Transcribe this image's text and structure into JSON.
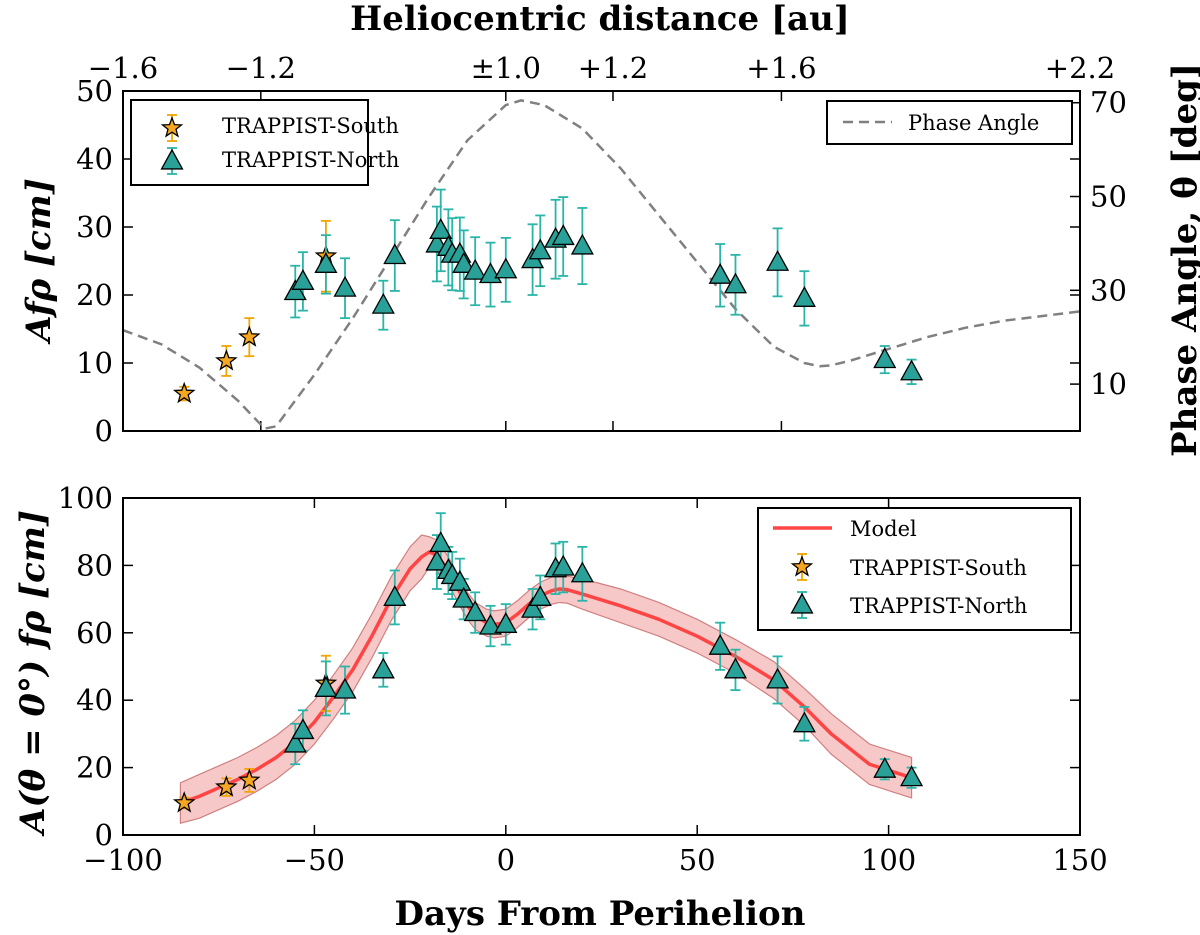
{
  "chart_data": [
    {
      "id": "top",
      "type": "scatter",
      "top_axis": {
        "label": "Heliocentric distance [au]",
        "tick_labels": [
          "−1.6",
          "−1.2",
          "±1.0",
          "+1.2",
          "+1.6",
          "+2.2"
        ],
        "tick_days": [
          -100,
          -64,
          0,
          28,
          72,
          150
        ]
      },
      "ylabel": "Afρ [cm]",
      "ylabel_right": "Phase Angle, θ [deg]",
      "xlim": [
        -100,
        150
      ],
      "ylim": [
        0,
        50
      ],
      "yticks": [
        0,
        10,
        20,
        30,
        40,
        50
      ],
      "ylim_right": [
        0,
        72.5
      ],
      "yticks_right": [
        10,
        30,
        50,
        70
      ],
      "series": [
        {
          "name": "TRAPPIST-South",
          "marker": "star",
          "color": "#f5a623",
          "err_color": "#f0a500",
          "points": [
            {
              "x": -84,
              "y": 5.5,
              "err": 1.0
            },
            {
              "x": -73,
              "y": 10.3,
              "err": 2.2
            },
            {
              "x": -67,
              "y": 13.8,
              "err": 2.8
            },
            {
              "x": -47,
              "y": 25.7,
              "err": 5.2
            }
          ]
        },
        {
          "name": "TRAPPIST-North",
          "marker": "triangle",
          "color": "#2aa198",
          "err_color": "#2ab5a8",
          "points": [
            {
              "x": -55,
              "y": 20.5,
              "err": 3.8
            },
            {
              "x": -53,
              "y": 22.0,
              "err": 4.3
            },
            {
              "x": -47,
              "y": 24.5,
              "err": 4.3
            },
            {
              "x": -42,
              "y": 21.0,
              "err": 4.4
            },
            {
              "x": -32,
              "y": 18.5,
              "err": 3.6
            },
            {
              "x": -29,
              "y": 25.8,
              "err": 5.2
            },
            {
              "x": -18,
              "y": 27.5,
              "err": 5.5
            },
            {
              "x": -17,
              "y": 29.5,
              "err": 6.0
            },
            {
              "x": -15,
              "y": 27.0,
              "err": 5.6
            },
            {
              "x": -14,
              "y": 26.0,
              "err": 5.3
            },
            {
              "x": -12,
              "y": 26.0,
              "err": 5.4
            },
            {
              "x": -11,
              "y": 24.5,
              "err": 5.0
            },
            {
              "x": -8,
              "y": 23.5,
              "err": 5.0
            },
            {
              "x": -4,
              "y": 23.0,
              "err": 4.7
            },
            {
              "x": 0,
              "y": 23.7,
              "err": 4.7
            },
            {
              "x": 7,
              "y": 25.2,
              "err": 5.2
            },
            {
              "x": 9,
              "y": 26.5,
              "err": 5.2
            },
            {
              "x": 13,
              "y": 28.2,
              "err": 5.8
            },
            {
              "x": 15,
              "y": 28.6,
              "err": 5.8
            },
            {
              "x": 20,
              "y": 27.2,
              "err": 5.6
            },
            {
              "x": 56,
              "y": 22.9,
              "err": 4.6
            },
            {
              "x": 60,
              "y": 21.5,
              "err": 4.4
            },
            {
              "x": 71,
              "y": 24.8,
              "err": 5.0
            },
            {
              "x": 78,
              "y": 19.5,
              "err": 4.0
            },
            {
              "x": 99,
              "y": 10.5,
              "err": 2.0
            },
            {
              "x": 106,
              "y": 8.7,
              "err": 1.8
            }
          ]
        },
        {
          "name": "Phase Angle",
          "type": "line",
          "dashed": true,
          "color": "#808080",
          "axis": "right",
          "x": [
            -100,
            -90,
            -80,
            -70,
            -63,
            -60,
            -55,
            -50,
            -45,
            -40,
            -30,
            -20,
            -10,
            0,
            4,
            10,
            20,
            30,
            40,
            50,
            60,
            70,
            78,
            82,
            85,
            90,
            100,
            110,
            120,
            130,
            140,
            150
          ],
          "y": [
            21.5,
            18.5,
            13.5,
            6.5,
            0.5,
            1.0,
            6.5,
            12.0,
            18.0,
            24.0,
            37.0,
            50.0,
            62.0,
            69.5,
            70.5,
            69.5,
            64.5,
            56.0,
            46.0,
            36.0,
            26.0,
            18.0,
            14.5,
            13.8,
            14.0,
            15.0,
            17.5,
            20.0,
            22.0,
            23.5,
            24.5,
            25.5
          ]
        }
      ],
      "legends": [
        {
          "position": "top-left",
          "entries": [
            "TRAPPIST-South",
            "TRAPPIST-North"
          ]
        },
        {
          "position": "top-right",
          "entries": [
            "Phase Angle"
          ]
        }
      ]
    },
    {
      "id": "bottom",
      "type": "scatter",
      "xlabel": "Days From Perihelion",
      "ylabel": "A(θ = 0°) fρ [cm]",
      "xlim": [
        -100,
        150
      ],
      "xticks": [
        -100,
        -50,
        0,
        50,
        100,
        150
      ],
      "xtick_labels": [
        "−100",
        "−50",
        "0",
        "50",
        "100",
        "150"
      ],
      "ylim": [
        0,
        100
      ],
      "yticks": [
        0,
        20,
        40,
        60,
        80,
        100
      ],
      "series": [
        {
          "name": "Model",
          "type": "line",
          "color": "#ff4444",
          "band_color": "#f4b6b6",
          "x": [
            -85,
            -80,
            -75,
            -70,
            -65,
            -60,
            -55,
            -50,
            -45,
            -40,
            -35,
            -30,
            -25,
            -22,
            -20,
            -18,
            -15,
            -12,
            -10,
            -8,
            -5,
            -3,
            0,
            3,
            6,
            9,
            12,
            14,
            16,
            20,
            30,
            40,
            50,
            60,
            70,
            78,
            85,
            95,
            106
          ],
          "y": [
            9.5,
            11.5,
            14.0,
            16.5,
            19.5,
            23.0,
            27.5,
            33.5,
            41.0,
            49.0,
            59.0,
            70.0,
            79.0,
            82.5,
            84.0,
            83.0,
            78.5,
            72.0,
            68.0,
            65.0,
            63.0,
            62.5,
            63.0,
            65.5,
            68.5,
            71.0,
            72.5,
            73.0,
            72.8,
            71.5,
            68.0,
            64.0,
            59.0,
            53.0,
            46.0,
            38.0,
            30.0,
            21.0,
            17.0
          ],
          "band": [
            6.0,
            6.5,
            6.5,
            6.5,
            6.5,
            6.5,
            6.5,
            6.5,
            6.5,
            6.5,
            6.5,
            6.5,
            6.5,
            6.5,
            4.5,
            4.5,
            4.0,
            4.0,
            4.0,
            4.0,
            4.0,
            4.0,
            4.0,
            4.0,
            4.0,
            4.0,
            4.0,
            4.0,
            4.0,
            4.5,
            5.0,
            5.0,
            5.0,
            5.0,
            5.5,
            5.5,
            6.0,
            6.0,
            6.0
          ]
        },
        {
          "name": "TRAPPIST-South",
          "marker": "star",
          "color": "#f5a623",
          "err_color": "#f0a500",
          "points": [
            {
              "x": -84,
              "y": 9.5,
              "err": 1.6
            },
            {
              "x": -73,
              "y": 14.2,
              "err": 2.6
            },
            {
              "x": -67,
              "y": 16.2,
              "err": 3.4
            },
            {
              "x": -47,
              "y": 45.0,
              "err": 8.2
            }
          ]
        },
        {
          "name": "TRAPPIST-North",
          "marker": "triangle",
          "color": "#2aa198",
          "err_color": "#2ab5a8",
          "points": [
            {
              "x": -55,
              "y": 27.0,
              "err": 6.0
            },
            {
              "x": -53,
              "y": 31.0,
              "err": 6.0
            },
            {
              "x": -47,
              "y": 43.5,
              "err": 8.0
            },
            {
              "x": -42,
              "y": 43.0,
              "err": 7.0
            },
            {
              "x": -32,
              "y": 49.0,
              "err": 5.0
            },
            {
              "x": -29,
              "y": 70.5,
              "err": 8.0
            },
            {
              "x": -18,
              "y": 81.0,
              "err": 8.0
            },
            {
              "x": -17,
              "y": 86.5,
              "err": 9.0
            },
            {
              "x": -15,
              "y": 78.5,
              "err": 7.0
            },
            {
              "x": -14,
              "y": 77.0,
              "err": 7.0
            },
            {
              "x": -12,
              "y": 75.0,
              "err": 7.0
            },
            {
              "x": -11,
              "y": 70.0,
              "err": 6.0
            },
            {
              "x": -8,
              "y": 66.0,
              "err": 6.0
            },
            {
              "x": -4,
              "y": 62.0,
              "err": 6.0
            },
            {
              "x": 0,
              "y": 62.5,
              "err": 6.0
            },
            {
              "x": 7,
              "y": 67.0,
              "err": 6.0
            },
            {
              "x": 9,
              "y": 70.5,
              "err": 6.5
            },
            {
              "x": 13,
              "y": 79.0,
              "err": 7.5
            },
            {
              "x": 15,
              "y": 79.5,
              "err": 7.5
            },
            {
              "x": 20,
              "y": 77.5,
              "err": 8.0
            },
            {
              "x": 56,
              "y": 56.0,
              "err": 7.0
            },
            {
              "x": 60,
              "y": 49.0,
              "err": 6.0
            },
            {
              "x": 71,
              "y": 46.0,
              "err": 7.0
            },
            {
              "x": 78,
              "y": 33.0,
              "err": 5.0
            },
            {
              "x": 99,
              "y": 19.5,
              "err": 3.0
            },
            {
              "x": 106,
              "y": 17.0,
              "err": 3.0
            }
          ]
        }
      ],
      "legends": [
        {
          "position": "top-right",
          "entries": [
            "Model",
            "TRAPPIST-South",
            "TRAPPIST-North"
          ]
        }
      ]
    }
  ]
}
